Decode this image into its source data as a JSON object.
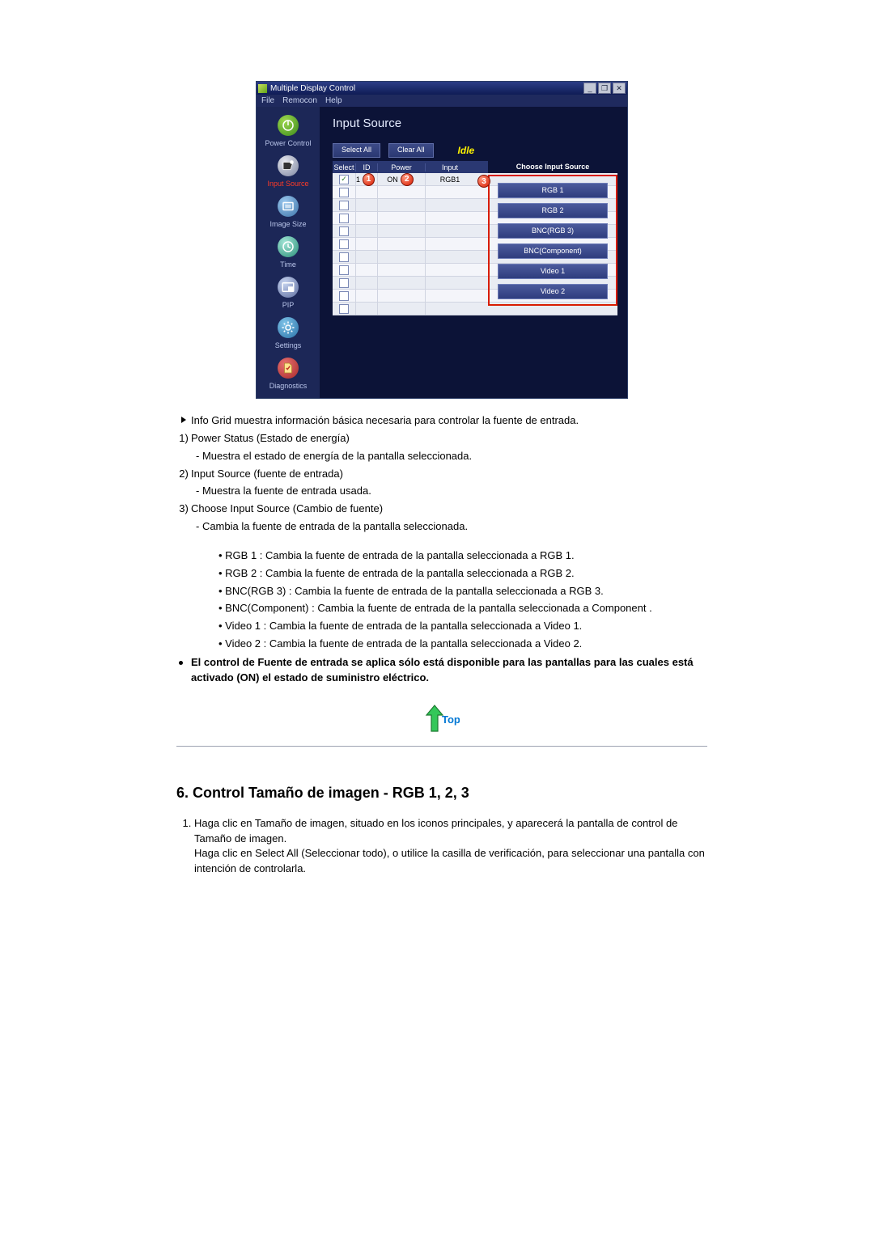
{
  "app": {
    "title": "Multiple Display Control",
    "menubar": [
      "File",
      "Remocon",
      "Help"
    ],
    "window_controls": {
      "min": "_",
      "max": "❐",
      "close": "✕"
    },
    "sidebar": [
      {
        "label": "Power Control",
        "icon": "power-icon",
        "color_a": "#9fd84f",
        "color_b": "#3a8a1a",
        "active": false
      },
      {
        "label": "Input Source",
        "icon": "inputsrc-icon",
        "color_a": "#e6e8ee",
        "color_b": "#7c84a0",
        "active": true
      },
      {
        "label": "Image Size",
        "icon": "imagesize-icon",
        "color_a": "#9bc8ef",
        "color_b": "#3e74a8",
        "active": false
      },
      {
        "label": "Time",
        "icon": "time-icon",
        "color_a": "#a3e6d7",
        "color_b": "#2a8f78",
        "active": false
      },
      {
        "label": "PIP",
        "icon": "pip-icon",
        "color_a": "#c6d3ef",
        "color_b": "#5e6ea0",
        "active": false
      },
      {
        "label": "Settings",
        "icon": "settings-icon",
        "color_a": "#7fc3e8",
        "color_b": "#2a72a8",
        "active": false
      },
      {
        "label": "Diagnostics",
        "icon": "diagnostics-icon",
        "color_a": "#e87070",
        "color_b": "#a82a2a",
        "active": false
      }
    ],
    "main": {
      "title": "Input Source",
      "buttons": {
        "select_all": "Select All",
        "clear_all": "Clear All"
      },
      "idle_label": "Idle",
      "columns": {
        "select": "Select",
        "id": "ID",
        "power": "Power",
        "input": "Input"
      },
      "rows": [
        {
          "checked": true,
          "id": "1",
          "power": "ON",
          "input": "RGB1"
        },
        {
          "checked": false,
          "id": "",
          "power": "",
          "input": ""
        },
        {
          "checked": false,
          "id": "",
          "power": "",
          "input": ""
        },
        {
          "checked": false,
          "id": "",
          "power": "",
          "input": ""
        },
        {
          "checked": false,
          "id": "",
          "power": "",
          "input": ""
        },
        {
          "checked": false,
          "id": "",
          "power": "",
          "input": ""
        },
        {
          "checked": false,
          "id": "",
          "power": "",
          "input": ""
        },
        {
          "checked": false,
          "id": "",
          "power": "",
          "input": ""
        },
        {
          "checked": false,
          "id": "",
          "power": "",
          "input": ""
        },
        {
          "checked": false,
          "id": "",
          "power": "",
          "input": ""
        },
        {
          "checked": false,
          "id": "",
          "power": "",
          "input": ""
        }
      ],
      "markers": {
        "m1": "1",
        "m2": "2",
        "m3": "3"
      },
      "choose_title": "Choose Input Source",
      "sources": [
        "RGB 1",
        "RGB 2",
        "BNC(RGB 3)",
        "BNC(Component)",
        "Video 1",
        "Video 2"
      ]
    }
  },
  "doc": {
    "arrow_line": "Info Grid muestra información básica necesaria para controlar la fuente de entrada.",
    "n1": "Power Status (Estado de energía)",
    "n1_sub": "- Muestra el estado de energía de la pantalla seleccionada.",
    "n2": "Input Source (fuente de entrada)",
    "n2_sub": "- Muestra la fuente de entrada usada.",
    "n3": "Choose Input Source (Cambio de fuente)",
    "n3_sub": "- Cambia la fuente de entrada de la pantalla seleccionada.",
    "bullets": [
      "RGB 1 : Cambia la fuente de entrada de la pantalla seleccionada a RGB 1.",
      "RGB 2 : Cambia la fuente de entrada de la pantalla seleccionada a RGB 2.",
      "BNC(RGB 3) : Cambia la fuente de entrada de la pantalla seleccionada a RGB 3.",
      "BNC(Component) : Cambia la fuente de entrada de la pantalla seleccionada a Component .",
      "Video 1 : Cambia la fuente de entrada de la pantalla seleccionada a Video 1.",
      "Video 2 : Cambia la fuente de entrada de la pantalla seleccionada a Video 2."
    ],
    "note": "El control de Fuente de entrada se aplica sólo está disponible para las pantallas para las cuales está activado (ON) el estado de suministro eléctrico.",
    "top_label": "Top",
    "h6": "6. Control Tamaño de imagen - RGB 1, 2, 3",
    "ol1a": "Haga clic en Tamaño de imagen, situado en los iconos principales, y aparecerá la pantalla de control de Tamaño de imagen.",
    "ol1b": "Haga clic en Select All (Seleccionar todo), o utilice la casilla de verificación, para seleccionar una pantalla con intención de controlarla."
  },
  "style": {
    "marker_ring": "#d81c00"
  }
}
